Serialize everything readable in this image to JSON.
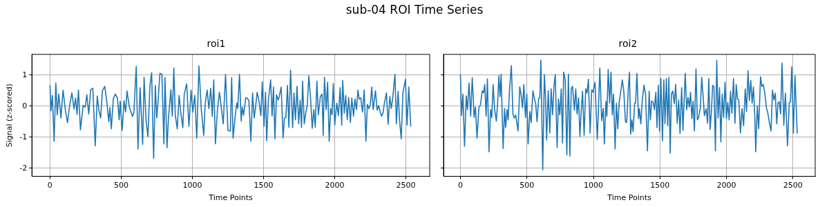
{
  "chart_data": [
    {
      "type": "line",
      "title": "roi1",
      "xlabel": "Time Points",
      "ylabel": "Signal (z-scored)",
      "annotations": [
        "sub-04 ROI Time Series"
      ],
      "xlim": [
        -127,
        2667
      ],
      "ylim": [
        -2.26,
        1.67
      ],
      "xticks": [
        0,
        500,
        1000,
        1500,
        2000,
        2500
      ],
      "yticks": [
        -2,
        -1,
        0,
        1
      ],
      "grid": true,
      "legend": false,
      "series": [
        {
          "color": "#1f77b4",
          "x": [
            0,
            7,
            17,
            29,
            41,
            51,
            62,
            77,
            92,
            108,
            123,
            139,
            154,
            169,
            180,
            190,
            200,
            214,
            233,
            247,
            259,
            272,
            286,
            301,
            318,
            332,
            344,
            356,
            368,
            385,
            399,
            413,
            421,
            431,
            445,
            459,
            474,
            486,
            493,
            507,
            520,
            531,
            541,
            558,
            579,
            589,
            606,
            618,
            633,
            651,
            661,
            675,
            688,
            702,
            714,
            728,
            740,
            750,
            760,
            772,
            786,
            800,
            808,
            822,
            832,
            849,
            859,
            870,
            880,
            894,
            907,
            919,
            933,
            943,
            960,
            976,
            991,
            1003,
            1017,
            1031,
            1046,
            1063,
            1080,
            1090,
            1104,
            1116,
            1129,
            1140,
            1150,
            1162,
            1176,
            1190,
            1204,
            1217,
            1233,
            1250,
            1267,
            1276,
            1286,
            1300,
            1312,
            1319,
            1331,
            1343,
            1351,
            1360,
            1375,
            1387,
            1397,
            1411,
            1423,
            1434,
            1444,
            1455,
            1467,
            1481,
            1491,
            1503,
            1514,
            1522,
            1534,
            1550,
            1560,
            1570,
            1580,
            1591,
            1603,
            1613,
            1624,
            1637,
            1647,
            1657,
            1668,
            1678,
            1690,
            1704,
            1714,
            1724,
            1735,
            1747,
            1757,
            1767,
            1774,
            1786,
            1795,
            1807,
            1818,
            1829,
            1842,
            1853,
            1863,
            1875,
            1885,
            1899,
            1911,
            1919,
            1928,
            1940,
            1950,
            1961,
            1971,
            1981,
            1990,
            2000,
            2014,
            2026,
            2038,
            2049,
            2056,
            2067,
            2077,
            2088,
            2098,
            2110,
            2120,
            2132,
            2142,
            2153,
            2163,
            2172,
            2183,
            2195,
            2207,
            2219,
            2229,
            2240,
            2250,
            2260,
            2270,
            2286,
            2298,
            2308,
            2320,
            2329,
            2339,
            2349,
            2363,
            2375,
            2387,
            2397,
            2407,
            2423,
            2433,
            2445,
            2455,
            2467,
            2479,
            2497,
            2508,
            2520,
            2534
          ],
          "values": [
            0.68,
            -0.15,
            0.35,
            -1.13,
            0.75,
            -0.28,
            0.39,
            -0.38,
            0.52,
            -0.13,
            -0.53,
            0.06,
            0.43,
            -0.09,
            0.27,
            -0.26,
            0.52,
            -0.76,
            0.03,
            -0.03,
            0.37,
            -0.25,
            0.53,
            0.58,
            -1.28,
            0.33,
            -0.15,
            -0.38,
            0.49,
            0.64,
            0.14,
            -0.5,
            -0.04,
            -0.73,
            0.24,
            0.39,
            0.27,
            -0.44,
            0.16,
            -0.78,
            0.18,
            -0.19,
            0.49,
            -0.03,
            -0.33,
            -0.22,
            1.28,
            -1.38,
            0.6,
            -1.23,
            0.93,
            -0.47,
            -0.97,
            0.67,
            1.08,
            -1.68,
            0.67,
            -0.38,
            0.2,
            1.06,
            1.03,
            -1.22,
            0.92,
            -1.34,
            -0.4,
            0.53,
            -0.32,
            1.23,
            -0.28,
            -0.73,
            0.35,
            -0.22,
            -0.69,
            0.38,
            0.72,
            -0.65,
            0.52,
            -0.19,
            0.35,
            -1.03,
            1.3,
            -0.11,
            -0.94,
            0.08,
            0.52,
            -0.08,
            0.58,
            -0.33,
            0.85,
            -1.21,
            -0.13,
            0.45,
            -0.07,
            -0.57,
            1.03,
            -0.78,
            -0.8,
            0.92,
            -1.03,
            -0.36,
            0.1,
            -0.07,
            1.03,
            -0.48,
            -0.03,
            -0.29,
            0.28,
            0.25,
            0.18,
            -1.13,
            0.43,
            -0.38,
            -0.03,
            0.45,
            0.2,
            -0.3,
            0.78,
            -0.65,
            0.45,
            -1.11,
            0.2,
            0.85,
            -0.32,
            0.62,
            -1.05,
            0.37,
            0.2,
            0.37,
            0.62,
            -1.03,
            -0.38,
            -0.36,
            0.67,
            -0.68,
            1.16,
            -0.69,
            0.43,
            -0.44,
            0.64,
            -0.57,
            0.2,
            -0.69,
            0.81,
            -0.57,
            -0.26,
            0.03,
            0.98,
            0.35,
            -0.71,
            -0.11,
            -0.68,
            0.81,
            -0.28,
            0.31,
            0.39,
            -0.94,
            0.93,
            -0.11,
            0.77,
            -1.13,
            -0.07,
            -0.28,
            0.73,
            -0.61,
            0.1,
            -0.3,
            0.6,
            -0.61,
            0.83,
            -0.23,
            0.35,
            -0.43,
            0.28,
            -0.53,
            0.27,
            -0.32,
            0.23,
            -0.11,
            0.52,
            0.23,
            0.27,
            -0.19,
            0.52,
            -1.13,
            0.06,
            -0.08,
            0.06,
            0.62,
            -0.11,
            0.5,
            -0.13,
            0.02,
            -0.19,
            -0.32,
            -0.22,
            0.1,
            0.43,
            -0.58,
            0.31,
            -0.07,
            0.25,
            1.03,
            -0.57,
            0.48,
            -0.44,
            -1.05,
            0.43,
            0.87,
            -0.61,
            0.62,
            -0.65
          ]
        }
      ]
    },
    {
      "type": "line",
      "title": "roi2",
      "xlabel": "Time Points",
      "xlim": [
        -127,
        2667
      ],
      "ylim": [
        -2.26,
        1.67
      ],
      "xticks": [
        0,
        500,
        1000,
        1500,
        2000,
        2500
      ],
      "yticks": [
        -2,
        -1,
        0,
        1
      ],
      "grid": true,
      "legend": false,
      "tick_labels": "x",
      "series": [
        {
          "color": "#1f77b4",
          "x": [
            0,
            9,
            19,
            31,
            44,
            53,
            65,
            77,
            89,
            103,
            113,
            125,
            139,
            150,
            164,
            174,
            183,
            193,
            203,
            215,
            227,
            236,
            246,
            258,
            270,
            280,
            289,
            298,
            306,
            321,
            332,
            340,
            351,
            359,
            369,
            383,
            395,
            405,
            416,
            424,
            433,
            446,
            457,
            467,
            477,
            489,
            499,
            509,
            522,
            532,
            545,
            556,
            566,
            576,
            588,
            597,
            605,
            619,
            631,
            640,
            648,
            660,
            672,
            682,
            693,
            703,
            713,
            727,
            737,
            747,
            758,
            768,
            776,
            788,
            800,
            812,
            823,
            833,
            843,
            857,
            867,
            877,
            888,
            898,
            907,
            918,
            930,
            942,
            952,
            962,
            975,
            987,
            997,
            1012,
            1029,
            1038,
            1048,
            1062,
            1074,
            1082,
            1094,
            1101,
            1111,
            1122,
            1132,
            1142,
            1151,
            1163,
            1173,
            1183,
            1193,
            1207,
            1217,
            1229,
            1240,
            1250,
            1262,
            1271,
            1280,
            1289,
            1298,
            1310,
            1317,
            1327,
            1339,
            1346,
            1356,
            1368,
            1380,
            1392,
            1406,
            1419,
            1428,
            1438,
            1450,
            1458,
            1469,
            1478,
            1488,
            1497,
            1507,
            1519,
            1529,
            1538,
            1548,
            1558,
            1567,
            1577,
            1586,
            1596,
            1608,
            1618,
            1630,
            1641,
            1651,
            1663,
            1673,
            1684,
            1690,
            1701,
            1711,
            1721,
            1730,
            1740,
            1749,
            1759,
            1771,
            1781,
            1791,
            1804,
            1814,
            1824,
            1834,
            1848,
            1858,
            1867,
            1877,
            1887,
            1896,
            1906,
            1917,
            1927,
            1937,
            1948,
            1958,
            1968,
            1979,
            1989,
            2000,
            2010,
            2020,
            2031,
            2041,
            2053,
            2064,
            2073,
            2083,
            2093,
            2105,
            2117,
            2129,
            2141,
            2151,
            2162,
            2172,
            2183,
            2193,
            2203,
            2213,
            2220,
            2232,
            2242,
            2256,
            2266,
            2277,
            2289,
            2301,
            2311,
            2323,
            2335,
            2346,
            2357,
            2367,
            2378,
            2387,
            2397,
            2407,
            2418,
            2431,
            2443,
            2459,
            2472,
            2481,
            2491,
            2503,
            2515,
            2532
          ],
          "values": [
            1.03,
            -0.3,
            0.39,
            -1.29,
            0.33,
            -0.11,
            0.75,
            -0.32,
            0.92,
            -0.36,
            -0.03,
            -1.03,
            -0.03,
            0.02,
            0.5,
            0.43,
            0.7,
            -0.32,
            0.88,
            -1.47,
            -0.11,
            -0.36,
            0.7,
            -0.13,
            -0.48,
            0.1,
            0.98,
            0.31,
            1.03,
            -1.36,
            -0.07,
            -0.69,
            -0.11,
            -0.44,
            0.52,
            1.31,
            -0.26,
            -0.38,
            -0.28,
            -0.53,
            -0.8,
            0.62,
            0.35,
            -0.05,
            0.7,
            -0.36,
            0.39,
            -1.22,
            -0.17,
            -0.53,
            0.5,
            0.25,
            0.08,
            -0.5,
            0.25,
            0.27,
            1.48,
            -2.05,
            1.02,
            0.27,
            -1.09,
            0.5,
            -0.86,
            0.56,
            -0.28,
            0.64,
            1.02,
            -1.33,
            0.23,
            -0.28,
            0.56,
            -1.19,
            1.1,
            0.85,
            -1.57,
            1.03,
            -1.61,
            0.56,
            0.64,
            -0.13,
            0.56,
            -0.25,
            0.27,
            -0.97,
            -0.25,
            0.48,
            -0.94,
            0.56,
            0.43,
            0.87,
            -0.86,
            0.53,
            0.45,
            0.77,
            -1.07,
            -0.07,
            1.23,
            -0.47,
            -0.07,
            -1.22,
            0.16,
            -0.32,
            1.18,
            0.1,
            1.1,
            -0.28,
            0.39,
            -1.38,
            0.1,
            -0.73,
            0.1,
            0.52,
            0.85,
            0.45,
            -0.48,
            -0.53,
            0.56,
            1.1,
            -0.9,
            -0.44,
            -0.82,
            0.1,
            0.1,
            1.06,
            -0.4,
            -0.08,
            -0.57,
            0.23,
            0.68,
            0.37,
            -1.44,
            0.48,
            -0.44,
            0.17,
            0.12,
            -0.11,
            0.45,
            -0.69,
            0.68,
            -0.8,
            0.89,
            -1.11,
            0.85,
            -0.57,
            0.89,
            -0.63,
            0.93,
            -1.51,
            0.39,
            0.49,
            0.08,
            0.7,
            -0.55,
            0.2,
            -0.88,
            0.6,
            -0.78,
            0.43,
            1.06,
            -0.11,
            0.28,
            -0.03,
            0.45,
            -0.4,
            0.16,
            -0.8,
            1.2,
            -0.44,
            -0.36,
            -0.03,
            0.93,
            0.35,
            -0.3,
            -0.08,
            -0.55,
            0.89,
            -0.75,
            -0.17,
            0.67,
            0.64,
            -1.44,
            1.48,
            -0.38,
            0.6,
            -1.15,
            0.39,
            -0.36,
            0.77,
            -0.4,
            0.12,
            -0.44,
            0.48,
            -0.23,
            0.89,
            -0.55,
            0.7,
            0.23,
            0.2,
            -0.86,
            -0.08,
            -0.63,
            0.56,
            -0.17,
            1.14,
            0.18,
            0.83,
            0.1,
            0.62,
            -0.32,
            -1.47,
            0.02,
            -0.73,
            0.95,
            0.64,
            0.7,
            0.39,
            -0.07,
            -0.22,
            -0.53,
            -0.8,
            0.52,
            0.2,
            0.42,
            -0.57,
            0.1,
            0.14,
            -0.25,
            1.39,
            -0.61,
            0.42,
            -1.28,
            0.1,
            0.14,
            1.27,
            -0.86,
            0.98,
            -0.88
          ]
        }
      ]
    }
  ]
}
